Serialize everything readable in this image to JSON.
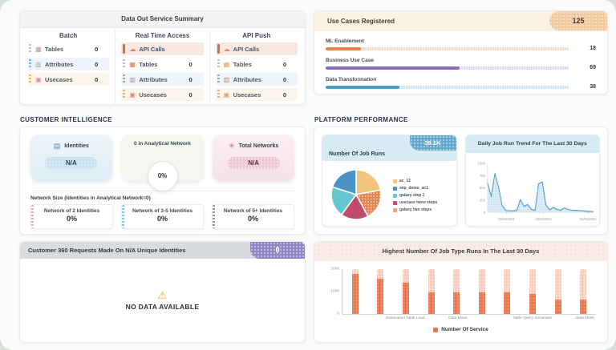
{
  "icons": {
    "table-icon": "▦",
    "attributes-icon": "▥",
    "usecase-icon": "▣",
    "api-icon": "☁",
    "warning-icon": "⚠",
    "identities-icon": "▤",
    "network-icon": "✳"
  },
  "data_out": {
    "title": "Data Out Service Summary",
    "columns": [
      {
        "title": "Batch",
        "rows": [
          {
            "label": "Tables",
            "value": "0",
            "icon": "table-icon",
            "icon_color": "#c98ea8",
            "accent": "#b8c4cd",
            "bg": "#ffffff",
            "highlight": false
          },
          {
            "label": "Attributes",
            "value": "0",
            "icon": "attributes-icon",
            "icon_color": "#9fa8b2",
            "accent": "#7fb1e0",
            "bg": "#eff5fa",
            "highlight": false
          },
          {
            "label": "Usecases",
            "value": "0",
            "icon": "usecase-icon",
            "icon_color": "#cf8fa6",
            "accent": "#f0b264",
            "bg": "#fdf6ec",
            "highlight": false
          }
        ]
      },
      {
        "title": "Real Time Access",
        "rows": [
          {
            "label": "API Calls",
            "value": "",
            "icon": "api-icon",
            "icon_color": "#e08a5e",
            "accent": "#e2674a",
            "bg": "#fbe7e2",
            "highlight": true
          },
          {
            "label": "Tables",
            "value": "0",
            "icon": "table-icon",
            "icon_color": "#d4764f",
            "accent": "#b8c4cd",
            "bg": "#ffffff",
            "highlight": false
          },
          {
            "label": "Attributes",
            "value": "0",
            "icon": "attributes-icon",
            "icon_color": "#b78f8f",
            "accent": "#7fb1e0",
            "bg": "#eff5fa",
            "highlight": false
          },
          {
            "label": "Usecases",
            "value": "0",
            "icon": "usecase-icon",
            "icon_color": "#d88f6a",
            "accent": "#f0b264",
            "bg": "#fdf6ec",
            "highlight": false
          }
        ]
      },
      {
        "title": "API Push",
        "rows": [
          {
            "label": "API Calls",
            "value": "",
            "icon": "api-icon",
            "icon_color": "#e08a5e",
            "accent": "#e2674a",
            "bg": "#fbe7e2",
            "highlight": true
          },
          {
            "label": "Tables",
            "value": "0",
            "icon": "table-icon",
            "icon_color": "#e5a14f",
            "accent": "#b8c4cd",
            "bg": "#ffffff",
            "highlight": false
          },
          {
            "label": "Attributes",
            "value": "0",
            "icon": "attributes-icon",
            "icon_color": "#c2836a",
            "accent": "#7fb1e0",
            "bg": "#eff5fa",
            "highlight": false
          },
          {
            "label": "Usecases",
            "value": "0",
            "icon": "usecase-icon",
            "icon_color": "#e59a5e",
            "accent": "#f0b264",
            "bg": "#fdf6ec",
            "highlight": false
          }
        ]
      }
    ]
  },
  "use_cases": {
    "title": "Use Cases Registered",
    "badge": "125"
  },
  "customer_intelligence": {
    "heading": "CUSTOMER INTELLIGENCE",
    "stats": [
      {
        "label": "Identities",
        "value": "N/A"
      },
      {
        "label": "0 in Analytical Network",
        "value": "0%"
      },
      {
        "label": "Total Networks",
        "value": "N/A"
      }
    ],
    "network_size_label": "Network Size (Identities in Analytical Network=0)",
    "network_cards": [
      {
        "label": "Network of 2 Identities",
        "value": "0%",
        "accent": "#e0a9bc"
      },
      {
        "label": "Network of 3-5 Identities",
        "value": "0%",
        "accent": "#86c6de"
      },
      {
        "label": "Network of 5+ Identities",
        "value": "0%",
        "accent": "#9d89d8"
      }
    ]
  },
  "customer360": {
    "title": "Customer 360 Requests Made On N/A Unique Identities",
    "badge": "0",
    "empty_text": "NO DATA AVAILABLE"
  },
  "platform": {
    "heading": "PLATFORM PERFORMANCE",
    "job_runs": {
      "title": "Number Of Job Runs",
      "badge": "39.1K"
    },
    "daily_trend": {
      "title": "Daily Job Run Trend For The Last 30 Days"
    },
    "job_type": {
      "title": "Highest Number Of Job Type Runs In The Last 30 Days",
      "legend": "Number Of Service"
    }
  },
  "chart_data": [
    {
      "id": "use_cases_registered",
      "type": "bar",
      "orientation": "horizontal",
      "title": "Use Cases Registered",
      "categories": [
        "ML Enablement",
        "Business Use Case",
        "Data Transformation"
      ],
      "values": [
        18,
        69,
        38
      ],
      "total": 125,
      "colors": [
        "#e8834e",
        "#8d6cc0",
        "#4a9fc0"
      ],
      "track_colors": [
        "#f6d9c3",
        "#dbd7f3",
        "#cfe4f2"
      ]
    },
    {
      "id": "number_of_job_runs",
      "type": "pie",
      "title": "Number Of Job Runs",
      "total_label": "39.1K",
      "labels": [
        "ac_12",
        "sep_demo_ac1",
        "galaxy step 1",
        "usecase twoo steps",
        "galaxy two steps"
      ],
      "values": [
        22,
        20,
        20,
        18,
        20
      ],
      "colors": [
        "#f3c47d",
        "#4a94c4",
        "#63c6d0",
        "#c14b6e",
        "#e8834e"
      ],
      "dotted": [
        false,
        false,
        false,
        false,
        true
      ],
      "slice_order": [
        0,
        4,
        3,
        2,
        1
      ],
      "legend_position": "right"
    },
    {
      "id": "daily_job_run_trend",
      "type": "area",
      "title": "Daily Job Run Trend For The Last 30 Days",
      "ylim": [
        0,
        1000
      ],
      "yticks": [
        0,
        250,
        500,
        750,
        1000
      ],
      "xticks": [
        {
          "pos": 0.18,
          "label": "03/10/2021"
        },
        {
          "pos": 0.53,
          "label": "03/19/2021"
        },
        {
          "pos": 0.95,
          "label": "04/01/2021"
        }
      ],
      "values": [
        600,
        320,
        790,
        520,
        140,
        40,
        30,
        30,
        40,
        260,
        120,
        160,
        60,
        40,
        580,
        620,
        150,
        50,
        100,
        60,
        40,
        90,
        60,
        45,
        40,
        35,
        30,
        25,
        20,
        15
      ],
      "line_color": "#5ba3cf",
      "fill_color": "#d9eaf5"
    },
    {
      "id": "job_type_runs",
      "type": "bar",
      "title": "Highest Number Of Job Type Runs In The Last 30 Days",
      "ylim": [
        0,
        2000
      ],
      "yticks": [
        0,
        1000,
        2000
      ],
      "categories": [
        "",
        "",
        "Destination Table Load",
        "",
        "Data Move",
        "",
        "",
        "Table Query Generator",
        "",
        "Data Move"
      ],
      "values": [
        1800,
        1560,
        1400,
        950,
        950,
        950,
        980,
        880,
        650,
        650
      ],
      "bar_color": "#e87a52",
      "track_color": "#f7cdbb",
      "legend": "Number Of Service",
      "legend_position": "bottom"
    }
  ]
}
